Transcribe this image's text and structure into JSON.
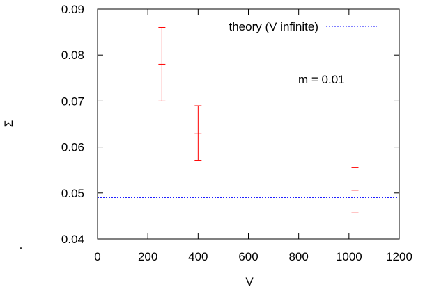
{
  "chart_data": {
    "type": "scatter",
    "xlabel": "V",
    "ylabel": "Σ",
    "xlim": [
      0,
      1200
    ],
    "ylim": [
      0.04,
      0.09
    ],
    "xticks": [
      "0",
      "200",
      "400",
      "600",
      "800",
      "1000",
      "1200"
    ],
    "yticks": [
      "0.04",
      "0.05",
      "0.06",
      "0.07",
      "0.08",
      "0.09"
    ],
    "grid": false,
    "legend_position": "top-right",
    "series": [
      {
        "kind": "errorbar",
        "color": "#ff0000",
        "points": [
          {
            "x": 256,
            "y": 0.078,
            "ylow": 0.07,
            "yhigh": 0.086
          },
          {
            "x": 400,
            "y": 0.063,
            "ylow": 0.057,
            "yhigh": 0.069
          },
          {
            "x": 1024,
            "y": 0.0506,
            "ylow": 0.0457,
            "yhigh": 0.0555
          }
        ]
      },
      {
        "kind": "hline",
        "name": "theory (V infinite)",
        "color": "#0000ff",
        "style": "dotted",
        "y": 0.049
      }
    ],
    "annotations": [
      {
        "text": "m = 0.01"
      }
    ],
    "stray_text": "."
  }
}
